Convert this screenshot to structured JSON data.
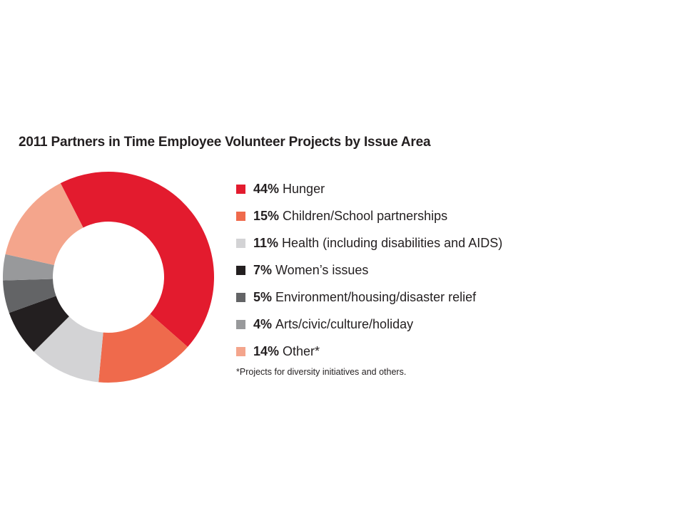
{
  "chart_data": {
    "type": "pie",
    "title": "2011 Partners in Time Employee Volunteer Projects by Issue Area",
    "unit": "%",
    "categories": [
      "Hunger",
      "Children/School partnerships",
      "Health (including disabilities and AIDS)",
      "Women’s issues",
      "Environment/housing/disaster relief",
      "Arts/civic/culture/holiday",
      "Other*"
    ],
    "values": [
      44,
      15,
      11,
      7,
      5,
      4,
      14
    ],
    "value_labels": [
      "44%",
      "15%",
      "11%",
      "7%",
      "5%",
      "4%",
      "14%"
    ],
    "colors": [
      "#e31b2e",
      "#ef6a4c",
      "#d3d3d5",
      "#231f20",
      "#636466",
      "#98999b",
      "#f4a58c"
    ],
    "legend_position": "right",
    "donut": true,
    "footnote": "*Projects for diversity initiatives and others."
  }
}
